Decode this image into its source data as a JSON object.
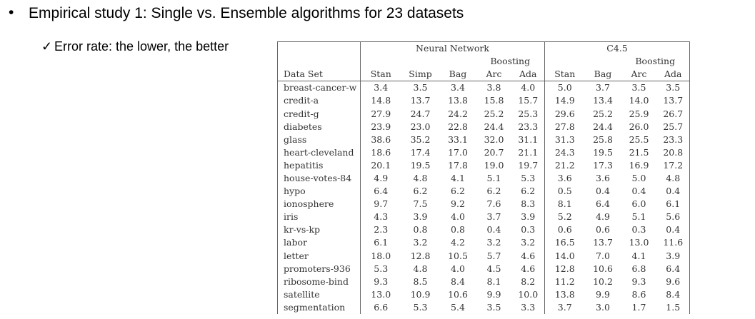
{
  "slide": {
    "title": "Empirical study 1: Single vs. Ensemble algorithms for 23 datasets",
    "bullet": "•",
    "check": "✓",
    "subpoint": "Error rate: the lower, the better"
  },
  "table": {
    "group_headers": [
      "Neural Network",
      "C4.5"
    ],
    "boosting_label": "Boosting",
    "dataset_header": "Data Set",
    "nn_columns": [
      "Stan",
      "Simp",
      "Bag",
      "Arc",
      "Ada"
    ],
    "c45_columns": [
      "Stan",
      "Bag",
      "Arc",
      "Ada"
    ],
    "rows": [
      {
        "name": "breast-cancer-w",
        "nn": [
          "3.4",
          "3.5",
          "3.4",
          "3.8",
          "4.0"
        ],
        "c45": [
          "5.0",
          "3.7",
          "3.5",
          "3.5"
        ]
      },
      {
        "name": "credit-a",
        "nn": [
          "14.8",
          "13.7",
          "13.8",
          "15.8",
          "15.7"
        ],
        "c45": [
          "14.9",
          "13.4",
          "14.0",
          "13.7"
        ]
      },
      {
        "name": "credit-g",
        "nn": [
          "27.9",
          "24.7",
          "24.2",
          "25.2",
          "25.3"
        ],
        "c45": [
          "29.6",
          "25.2",
          "25.9",
          "26.7"
        ]
      },
      {
        "name": "diabetes",
        "nn": [
          "23.9",
          "23.0",
          "22.8",
          "24.4",
          "23.3"
        ],
        "c45": [
          "27.8",
          "24.4",
          "26.0",
          "25.7"
        ]
      },
      {
        "name": "glass",
        "nn": [
          "38.6",
          "35.2",
          "33.1",
          "32.0",
          "31.1"
        ],
        "c45": [
          "31.3",
          "25.8",
          "25.5",
          "23.3"
        ]
      },
      {
        "name": "heart-cleveland",
        "nn": [
          "18.6",
          "17.4",
          "17.0",
          "20.7",
          "21.1"
        ],
        "c45": [
          "24.3",
          "19.5",
          "21.5",
          "20.8"
        ]
      },
      {
        "name": "hepatitis",
        "nn": [
          "20.1",
          "19.5",
          "17.8",
          "19.0",
          "19.7"
        ],
        "c45": [
          "21.2",
          "17.3",
          "16.9",
          "17.2"
        ]
      },
      {
        "name": "house-votes-84",
        "nn": [
          "4.9",
          "4.8",
          "4.1",
          "5.1",
          "5.3"
        ],
        "c45": [
          "3.6",
          "3.6",
          "5.0",
          "4.8"
        ]
      },
      {
        "name": "hypo",
        "nn": [
          "6.4",
          "6.2",
          "6.2",
          "6.2",
          "6.2"
        ],
        "c45": [
          "0.5",
          "0.4",
          "0.4",
          "0.4"
        ]
      },
      {
        "name": "ionosphere",
        "nn": [
          "9.7",
          "7.5",
          "9.2",
          "7.6",
          "8.3"
        ],
        "c45": [
          "8.1",
          "6.4",
          "6.0",
          "6.1"
        ]
      },
      {
        "name": "iris",
        "nn": [
          "4.3",
          "3.9",
          "4.0",
          "3.7",
          "3.9"
        ],
        "c45": [
          "5.2",
          "4.9",
          "5.1",
          "5.6"
        ]
      },
      {
        "name": "kr-vs-kp",
        "nn": [
          "2.3",
          "0.8",
          "0.8",
          "0.4",
          "0.3"
        ],
        "c45": [
          "0.6",
          "0.6",
          "0.3",
          "0.4"
        ]
      },
      {
        "name": "labor",
        "nn": [
          "6.1",
          "3.2",
          "4.2",
          "3.2",
          "3.2"
        ],
        "c45": [
          "16.5",
          "13.7",
          "13.0",
          "11.6"
        ]
      },
      {
        "name": "letter",
        "nn": [
          "18.0",
          "12.8",
          "10.5",
          "5.7",
          "4.6"
        ],
        "c45": [
          "14.0",
          "7.0",
          "4.1",
          "3.9"
        ]
      },
      {
        "name": "promoters-936",
        "nn": [
          "5.3",
          "4.8",
          "4.0",
          "4.5",
          "4.6"
        ],
        "c45": [
          "12.8",
          "10.6",
          "6.8",
          "6.4"
        ]
      },
      {
        "name": "ribosome-bind",
        "nn": [
          "9.3",
          "8.5",
          "8.4",
          "8.1",
          "8.2"
        ],
        "c45": [
          "11.2",
          "10.2",
          "9.3",
          "9.6"
        ]
      },
      {
        "name": "satellite",
        "nn": [
          "13.0",
          "10.9",
          "10.6",
          "9.9",
          "10.0"
        ],
        "c45": [
          "13.8",
          "9.9",
          "8.6",
          "8.4"
        ]
      },
      {
        "name": "segmentation",
        "nn": [
          "6.6",
          "5.3",
          "5.4",
          "3.5",
          "3.3"
        ],
        "c45": [
          "3.7",
          "3.0",
          "1.7",
          "1.5"
        ]
      }
    ]
  }
}
